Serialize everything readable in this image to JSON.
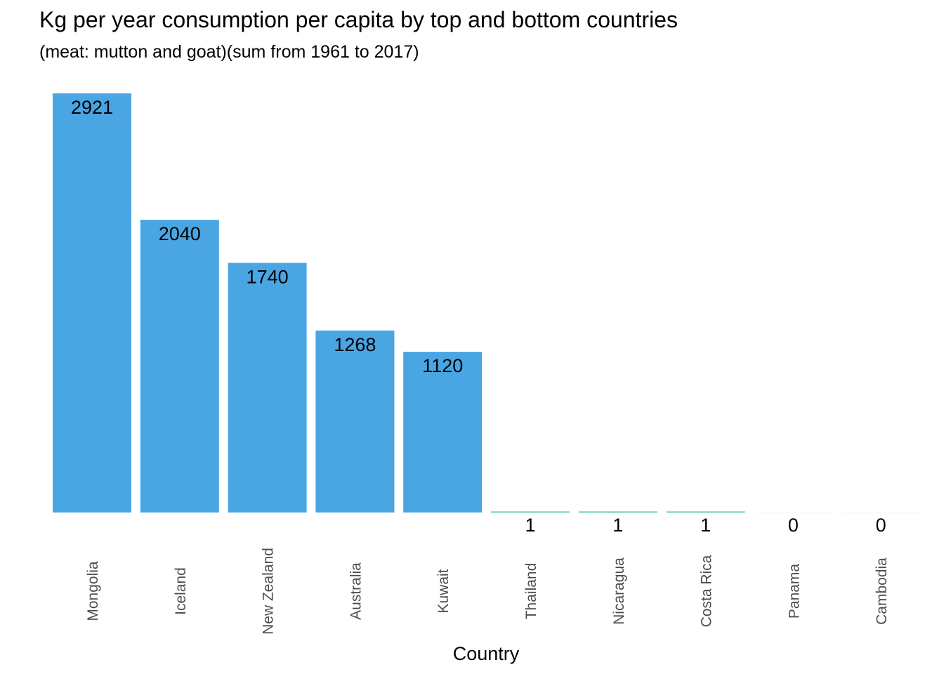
{
  "chart_data": {
    "type": "bar",
    "title": "Kg per year consumption per capita by top and bottom countries",
    "subtitle": "(meat: mutton and goat)(sum from 1961 to 2017)",
    "xlabel": "Country",
    "ylabel": "",
    "categories": [
      "Mongolia",
      "Iceland",
      "New Zealand",
      "Australia",
      "Kuwait",
      "Thailand",
      "Nicaragua",
      "Costa Rica",
      "Panama",
      "Cambodia"
    ],
    "values": [
      2921,
      2040,
      1740,
      1268,
      1120,
      1,
      1,
      1,
      0,
      0
    ],
    "labels": [
      "2921",
      "2040",
      "1740",
      "1268",
      "1120",
      "1",
      "1",
      "1",
      "0",
      "0"
    ],
    "ylim": [
      0,
      2921
    ],
    "grid": false,
    "legend": "none",
    "colors": {
      "bar": "#4aa5e3",
      "small_bar": "#3ec4a8",
      "label": "#000000",
      "tick": "#4d4d4d"
    }
  }
}
